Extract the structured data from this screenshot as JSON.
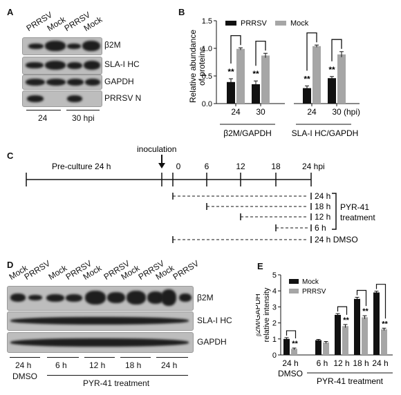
{
  "panels": {
    "a": "A",
    "b": "B",
    "c": "C",
    "d": "D",
    "e": "E"
  },
  "panel_a": {
    "lanes": [
      "PRRSV",
      "Mock",
      "PRRSV",
      "Mock"
    ],
    "rows": [
      "β2M",
      "SLA-I HC",
      "GAPDH",
      "PRRSV N"
    ],
    "time_labels": [
      "24",
      "30 hpi"
    ]
  },
  "panel_c": {
    "preculture": "Pre-culture 24 h",
    "inoculation": "inoculation",
    "ticks": [
      "0",
      "6",
      "12",
      "18",
      "24 hpi"
    ],
    "treat_labels": [
      "24 h",
      "18 h",
      "12 h",
      "6 h"
    ],
    "dmso_label": "24 h DMSO",
    "pyr_label_1": "PYR-41",
    "pyr_label_2": "treatment"
  },
  "panel_d": {
    "lanes": [
      "Mock",
      "PRRSV",
      "Mock",
      "PRRSV",
      "Mock",
      "PRRSV",
      "Mock",
      "PRRSV",
      "Mock",
      "PRRSV"
    ],
    "rows": [
      "β2M",
      "SLA-I HC",
      "GAPDH"
    ],
    "groups": [
      "24 h",
      "6 h",
      "12 h",
      "18 h",
      "24 h"
    ],
    "dmso": "DMSO",
    "treatment": "PYR-41 treatment"
  },
  "chart_data": [
    {
      "type": "bar",
      "panel": "B",
      "ylabel": "Relative abundance of proteins",
      "ylabel_line1": "Relative abundance",
      "ylabel_line2": "of proteins",
      "xlabel": "(hpi)",
      "categories": [
        "24",
        "30",
        "24",
        "30"
      ],
      "groups": [
        "β2M/GAPDH",
        "SLA-I HC/GAPDH"
      ],
      "series": [
        {
          "name": "PRRSV",
          "values": [
            0.39,
            0.35,
            0.28,
            0.46
          ],
          "errors": [
            0.06,
            0.06,
            0.04,
            0.03
          ],
          "color": "#111111"
        },
        {
          "name": "Mock",
          "values": [
            0.99,
            0.87,
            1.04,
            0.89
          ],
          "errors": [
            0.02,
            0.04,
            0.02,
            0.05
          ],
          "color": "#a6a6a6"
        }
      ],
      "significance": [
        "**",
        "**",
        "**",
        "**"
      ],
      "yticks": [
        "0.0",
        "0.5",
        "1.0",
        "1.5"
      ],
      "ylim": [
        0,
        1.5
      ],
      "legend": "top"
    },
    {
      "type": "bar",
      "panel": "E",
      "ylabel": "β2M/GAPDH relative intensity",
      "ylabel_line1": "ᵦ2M/GAPDH",
      "ylabel_line2": "relative intensity",
      "categories": [
        "24 h",
        "6 h",
        "12 h",
        "18 h",
        "24 h"
      ],
      "group_labels": [
        "DMSO",
        "PYR-41 treatment"
      ],
      "series": [
        {
          "name": "Mock",
          "values": [
            1.0,
            0.92,
            2.5,
            3.5,
            3.9
          ],
          "errors": [
            0.08,
            0.05,
            0.08,
            0.1,
            0.08
          ],
          "color": "#111111"
        },
        {
          "name": "PRRSV",
          "values": [
            0.38,
            0.78,
            1.8,
            2.35,
            1.6
          ],
          "errors": [
            0.05,
            0.06,
            0.1,
            0.1,
            0.07
          ],
          "color": "#a6a6a6"
        }
      ],
      "significance": [
        "**",
        "",
        "**",
        "**",
        "**"
      ],
      "yticks": [
        "0",
        "1",
        "2",
        "3",
        "4",
        "5"
      ],
      "ylim": [
        0,
        5
      ],
      "legend": "top-left"
    }
  ]
}
